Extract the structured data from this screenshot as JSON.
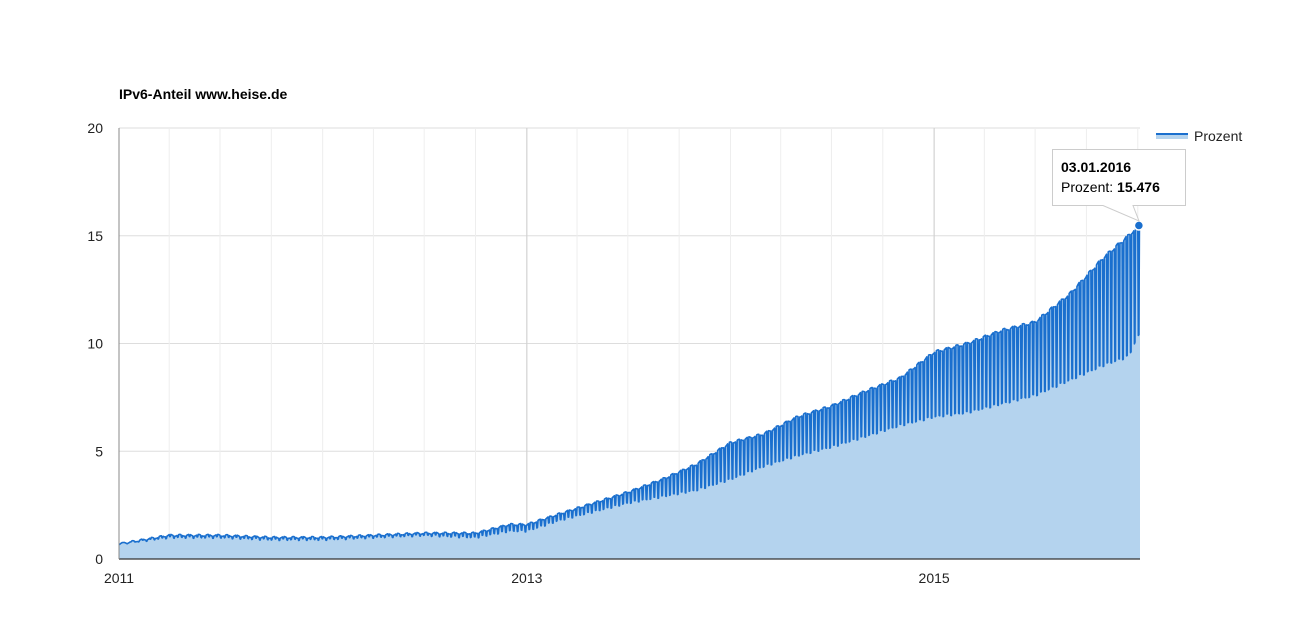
{
  "chart_data": {
    "type": "area",
    "title": "IPv6-Anteil www.heise.de",
    "xlabel": "",
    "ylabel": "",
    "x_start": "2011-01-01",
    "x_end": "2016-01-05",
    "xlim": [
      "2011-01-01",
      "2016-01-05"
    ],
    "ylim": [
      0,
      20
    ],
    "y_ticks": [
      0,
      5,
      10,
      15,
      20
    ],
    "x_ticks": [
      {
        "date": "2011-01-01",
        "label": "2011"
      },
      {
        "date": "2013-01-01",
        "label": "2013"
      },
      {
        "date": "2015-01-01",
        "label": "2015"
      }
    ],
    "grid": true,
    "legend": {
      "position": "top-right",
      "entries": [
        "Prozent"
      ]
    },
    "series": [
      {
        "name": "Prozent",
        "color": "#1a6fce",
        "fill": "#b4d3ee",
        "x": [
          "2011-01-01",
          "2011-04-01",
          "2011-07-01",
          "2011-10-01",
          "2012-01-01",
          "2012-04-01",
          "2012-07-01",
          "2012-10-01",
          "2012-12-01",
          "2013-01-01",
          "2013-03-01",
          "2013-05-01",
          "2013-07-01",
          "2013-09-01",
          "2013-11-01",
          "2014-01-01",
          "2014-03-01",
          "2014-05-01",
          "2014-07-01",
          "2014-09-01",
          "2014-11-01",
          "2015-01-01",
          "2015-03-01",
          "2015-05-01",
          "2015-07-01",
          "2015-09-01",
          "2015-11-01",
          "2015-12-15",
          "2016-01-03"
        ],
        "weekday_values": [
          0.7,
          1.1,
          1.1,
          1.0,
          1.0,
          1.1,
          1.2,
          1.2,
          1.6,
          1.6,
          2.1,
          2.6,
          3.1,
          3.7,
          4.4,
          5.4,
          5.8,
          6.6,
          7.1,
          7.8,
          8.4,
          9.6,
          10.0,
          10.6,
          11.0,
          12.3,
          14.0,
          15.0,
          15.476
        ],
        "weekend_values": [
          0.7,
          1.0,
          1.0,
          0.9,
          0.9,
          1.0,
          1.1,
          1.0,
          1.3,
          1.3,
          1.8,
          2.2,
          2.6,
          2.9,
          3.2,
          3.7,
          4.3,
          4.8,
          5.2,
          5.7,
          6.2,
          6.6,
          6.8,
          7.2,
          7.6,
          8.3,
          9.0,
          9.4,
          10.4
        ],
        "highlight": {
          "date": "03.01.2016",
          "value": 15.476
        }
      }
    ]
  },
  "tooltip": {
    "date": "03.01.2016",
    "label": "Prozent: ",
    "value": "15.476"
  },
  "colors": {
    "line": "#1a6fce",
    "area": "#b4d3ee",
    "grid": "#dddddd",
    "axis": "#333333"
  }
}
